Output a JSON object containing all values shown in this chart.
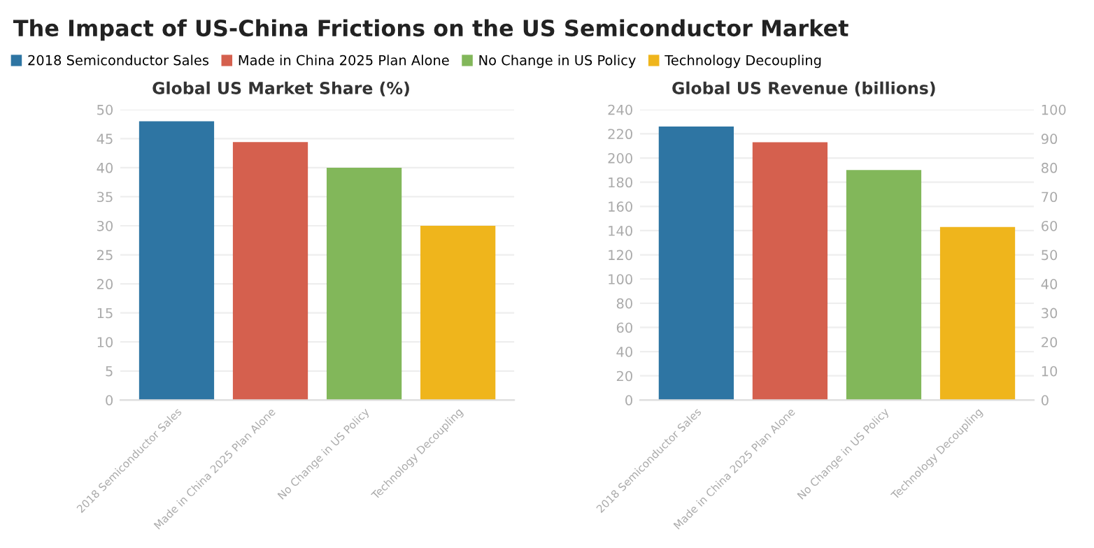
{
  "chart_data": [
    {
      "type": "bar",
      "annotations": [
        "The Impact of US-China Frictions on the US Semiconductor Market"
      ],
      "title": "Global US Market Share (%)",
      "categories": [
        "2018 Semiconductor Sales",
        "Made in China 2025 Plan Alone",
        "No Change in US Policy",
        "Technology Decoupling"
      ],
      "series": [
        {
          "name": "2018 Semiconductor Sales",
          "color": "#2e75a3",
          "values": [
            48,
            null,
            null,
            null
          ]
        },
        {
          "name": "Made in China 2025 Plan Alone",
          "color": "#d5604e",
          "values": [
            null,
            44.4,
            null,
            null
          ]
        },
        {
          "name": "No Change in US Policy",
          "color": "#82b75a",
          "values": [
            null,
            null,
            40,
            null
          ]
        },
        {
          "name": "Technology Decoupling",
          "color": "#efb51c",
          "values": [
            null,
            null,
            null,
            30
          ]
        }
      ],
      "ylim": [
        0,
        50
      ],
      "yticks": [
        0,
        5,
        10,
        15,
        20,
        25,
        30,
        35,
        40,
        45,
        50
      ],
      "grid": "y",
      "legend": "top"
    },
    {
      "type": "bar",
      "title": "Global US Revenue (billions)",
      "categories": [
        "2018 Semiconductor Sales",
        "Made in China 2025 Plan Alone",
        "No Change in US Policy",
        "Technology Decoupling"
      ],
      "series": [
        {
          "color": "#2e75a3",
          "values": [
            226,
            null,
            null,
            null
          ]
        },
        {
          "color": "#d5604e",
          "values": [
            null,
            213,
            null,
            null
          ]
        },
        {
          "color": "#82b75a",
          "values": [
            null,
            null,
            190,
            null
          ]
        },
        {
          "color": "#efb51c",
          "values": [
            null,
            null,
            null,
            143
          ]
        }
      ],
      "ylim": [
        0,
        240
      ],
      "yticks": [
        0,
        20,
        40,
        60,
        80,
        100,
        120,
        140,
        160,
        180,
        200,
        220,
        240
      ],
      "y2lim": [
        0,
        100
      ],
      "y2ticks": [
        0,
        10,
        20,
        30,
        40,
        50,
        60,
        70,
        80,
        90,
        100
      ],
      "grid": "y"
    }
  ]
}
